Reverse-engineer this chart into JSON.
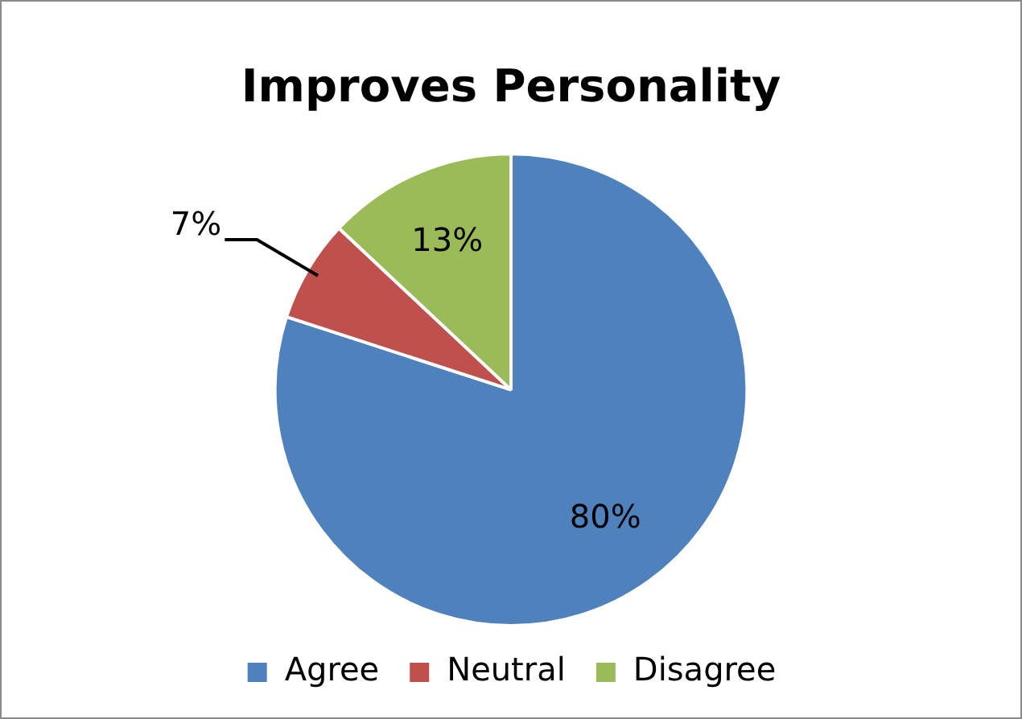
{
  "chart_data": {
    "type": "pie",
    "title": "Improves Personality",
    "categories": [
      "Agree",
      "Neutral",
      "Disagree"
    ],
    "values": [
      80,
      7,
      13
    ],
    "colors": [
      "#4f81bd",
      "#c0504d",
      "#9bbb59"
    ],
    "value_labels": [
      "80%",
      "7%",
      "13%"
    ],
    "legend": "bottom"
  }
}
